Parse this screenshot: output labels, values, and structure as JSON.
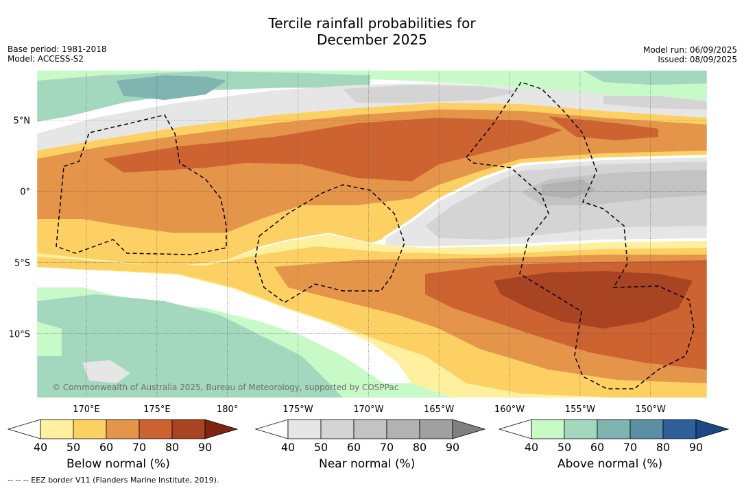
{
  "title": {
    "line1": "Tercile rainfall probabilities for",
    "line2": "December 2025"
  },
  "meta": {
    "base_period": "Base period: 1981-2018",
    "model": "Model: ACCESS-S2",
    "model_run": "Model run: 06/09/2025",
    "issued": "Issued: 08/09/2025"
  },
  "map": {
    "lat_labels": [
      "5°N",
      "0°",
      "5°S",
      "10°S"
    ],
    "lat_values": [
      5,
      0,
      -5,
      -10
    ],
    "lon_labels": [
      "170°E",
      "175°E",
      "180°",
      "175°W",
      "170°W",
      "165°W",
      "160°W",
      "155°W",
      "150°W"
    ],
    "lon_values": [
      170,
      175,
      180,
      185,
      190,
      195,
      200,
      205,
      210
    ],
    "lon_range": [
      166.5,
      214
    ],
    "lat_range": [
      -14.5,
      8.5
    ],
    "copyright": "© Commonwealth of Australia 2025, Bureau of Meteorology, supported by COSPPac"
  },
  "colorbars": [
    {
      "label": "Below normal (%)",
      "ticks": [
        "40",
        "50",
        "60",
        "70",
        "80",
        "90"
      ],
      "low_color": "#ffffff",
      "colors": [
        "#fff0a0",
        "#fdd064",
        "#e5954a",
        "#cc6331",
        "#a94422"
      ],
      "high_color": "#7e2412"
    },
    {
      "label": "Near normal (%)",
      "ticks": [
        "40",
        "50",
        "60",
        "70",
        "80",
        "90"
      ],
      "low_color": "#ffffff",
      "colors": [
        "#e6e6e6",
        "#d4d4d4",
        "#c3c3c3",
        "#b2b2b2",
        "#a0a0a0"
      ],
      "high_color": "#808080"
    },
    {
      "label": "Above normal (%)",
      "ticks": [
        "40",
        "50",
        "60",
        "70",
        "80",
        "90"
      ],
      "low_color": "#ffffff",
      "colors": [
        "#c8fac8",
        "#a3d8be",
        "#80b4b0",
        "#5b8fa4",
        "#2e5f98"
      ],
      "high_color": "#1a4a86"
    }
  ],
  "footer": "--  --  -- EEZ border V11 (Flanders Marine Institute, 2019)."
}
